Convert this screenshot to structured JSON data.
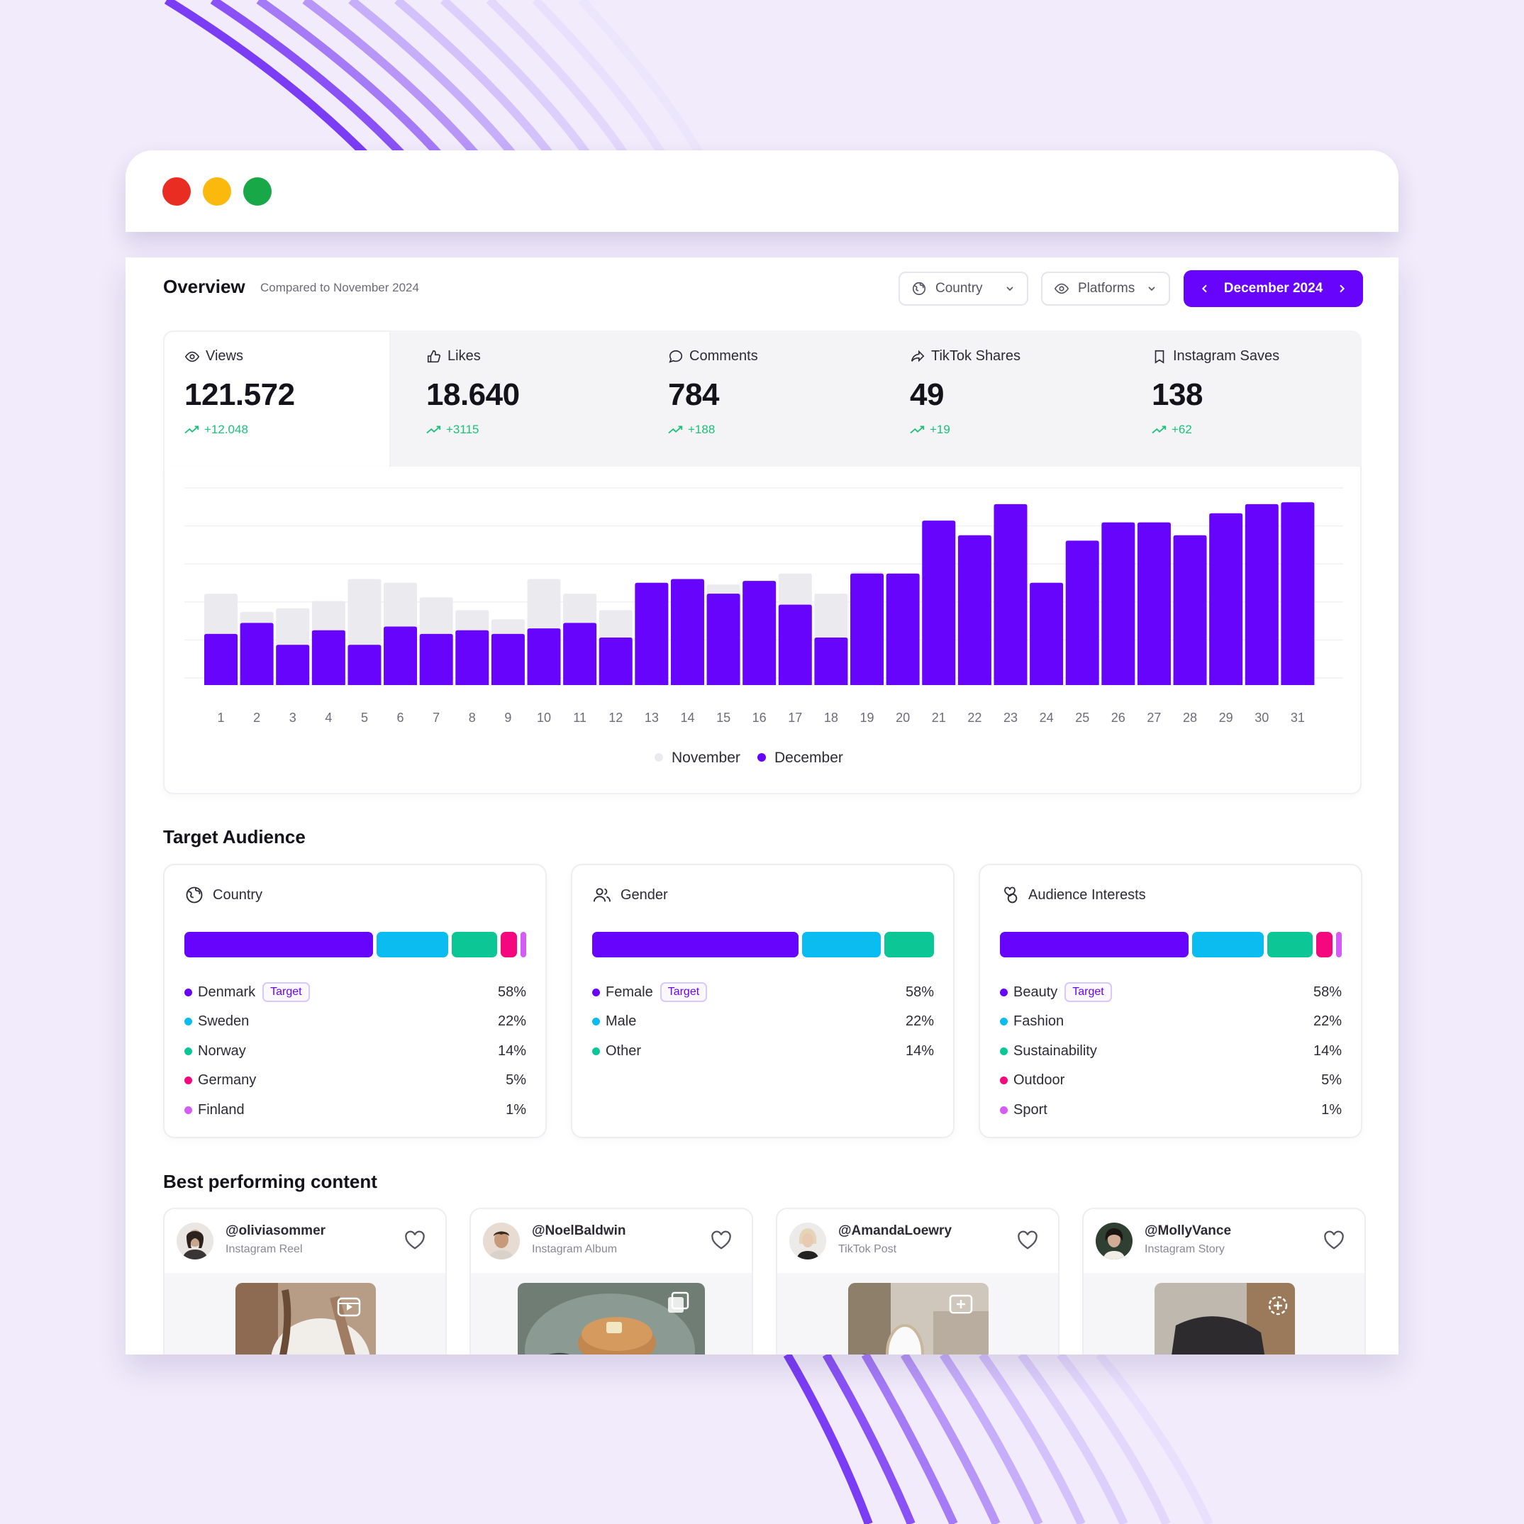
{
  "window": {
    "controls": [
      "close",
      "minimize",
      "maximize"
    ]
  },
  "header": {
    "title": "Overview",
    "compared": "Compared to November 2024",
    "country_filter": "Country",
    "platforms_filter": "Platforms",
    "date_label": "December 2024"
  },
  "stats": [
    {
      "icon": "eye-icon",
      "label": "Views",
      "value": "121.572",
      "delta": "+12.048"
    },
    {
      "icon": "thumbs-up-icon",
      "label": "Likes",
      "value": "18.640",
      "delta": "+3115"
    },
    {
      "icon": "comment-icon",
      "label": "Comments",
      "value": "784",
      "delta": "+188"
    },
    {
      "icon": "share-icon",
      "label": "TikTok Shares",
      "value": "49",
      "delta": "+19"
    },
    {
      "icon": "bookmark-icon",
      "label": "Instagram Saves",
      "value": "138",
      "delta": "+62"
    }
  ],
  "chart_data": {
    "type": "bar",
    "categories": [
      "1",
      "2",
      "3",
      "4",
      "5",
      "6",
      "7",
      "8",
      "9",
      "10",
      "11",
      "12",
      "13",
      "14",
      "15",
      "16",
      "17",
      "18",
      "19",
      "20",
      "21",
      "22",
      "23",
      "24",
      "25",
      "26",
      "27",
      "28",
      "29",
      "30",
      "31"
    ],
    "series": [
      {
        "name": "November",
        "color": "#ebeaef",
        "values": [
          50,
          40,
          42,
          46,
          58,
          56,
          48,
          41,
          36,
          58,
          50,
          41,
          53,
          57,
          55,
          57,
          61,
          50,
          62,
          52,
          53,
          52,
          46,
          56,
          48,
          53,
          52,
          46,
          49,
          54,
          54
        ]
      },
      {
        "name": "December",
        "color": "#6604fc",
        "values": [
          28,
          34,
          22,
          30,
          22,
          32,
          28,
          30,
          28,
          31,
          34,
          26,
          56,
          58,
          50,
          57,
          44,
          26,
          61,
          61,
          90,
          82,
          99,
          56,
          79,
          89,
          89,
          82,
          94,
          99,
          100
        ]
      }
    ],
    "ylim": [
      0,
      104
    ],
    "grid": true,
    "legend": "bottom-center"
  },
  "audience": {
    "title": "Target Audience",
    "target_label": "Target",
    "cards": [
      {
        "icon": "globe-icon",
        "title": "Country",
        "items": [
          {
            "label": "Denmark",
            "pct": "58%",
            "value": 58,
            "color": "#6604fc",
            "target": true
          },
          {
            "label": "Sweden",
            "pct": "22%",
            "value": 22,
            "color": "#0bbcf0",
            "target": false
          },
          {
            "label": "Norway",
            "pct": "14%",
            "value": 14,
            "color": "#0cc795",
            "target": false
          },
          {
            "label": "Germany",
            "pct": "5%",
            "value": 5,
            "color": "#f5077e",
            "target": false
          },
          {
            "label": "Finland",
            "pct": "1%",
            "value": 1,
            "color": "#d45cf5",
            "target": false
          }
        ]
      },
      {
        "icon": "users-icon",
        "title": "Gender",
        "items": [
          {
            "label": "Female",
            "pct": "58%",
            "value": 58,
            "color": "#6604fc",
            "target": true
          },
          {
            "label": "Male",
            "pct": "22%",
            "value": 22,
            "color": "#0bbcf0",
            "target": false
          },
          {
            "label": "Other",
            "pct": "14%",
            "value": 14,
            "color": "#0cc795",
            "target": false
          }
        ]
      },
      {
        "icon": "interests-icon",
        "title": "Audience Interests",
        "items": [
          {
            "label": "Beauty",
            "pct": "58%",
            "value": 58,
            "color": "#6604fc",
            "target": true
          },
          {
            "label": "Fashion",
            "pct": "22%",
            "value": 22,
            "color": "#0bbcf0",
            "target": false
          },
          {
            "label": "Sustainability",
            "pct": "14%",
            "value": 14,
            "color": "#0cc795",
            "target": false
          },
          {
            "label": "Outdoor",
            "pct": "5%",
            "value": 5,
            "color": "#f5077e",
            "target": false
          },
          {
            "label": "Sport",
            "pct": "1%",
            "value": 1,
            "color": "#d45cf5",
            "target": false
          }
        ]
      }
    ]
  },
  "best_content": {
    "title": "Best performing content",
    "items": [
      {
        "handle": "@oliviasommer",
        "type": "Instagram Reel",
        "badge_icon": "reel-icon"
      },
      {
        "handle": "@NoelBaldwin",
        "type": "Instagram Album",
        "badge_icon": "album-icon"
      },
      {
        "handle": "@AmandaLoewry",
        "type": "TikTok Post",
        "badge_icon": "tiktok-post-icon"
      },
      {
        "handle": "@MollyVance",
        "type": "Instagram Story",
        "badge_icon": "story-icon"
      }
    ]
  }
}
